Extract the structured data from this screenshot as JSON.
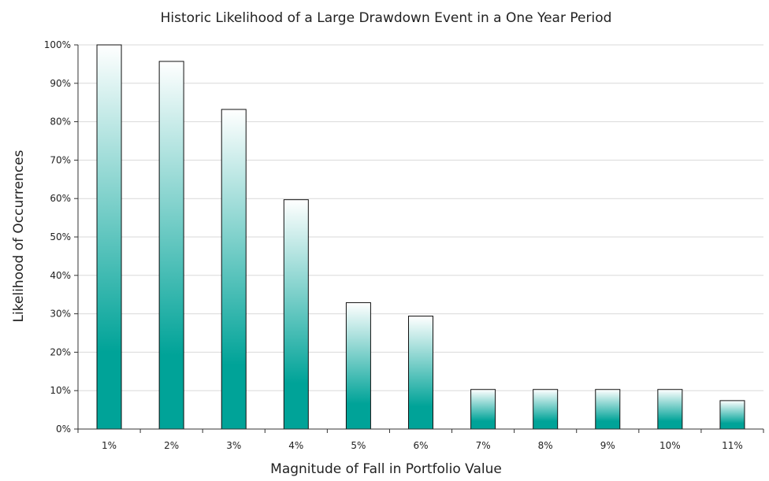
{
  "chart_data": {
    "type": "bar",
    "title": "Historic Likelihood of a Large Drawdown Event in a One Year Period",
    "xlabel": "Magnitude of Fall in Portfolio Value",
    "ylabel": "Likelihood of Occurrences",
    "categories": [
      "1%",
      "2%",
      "3%",
      "4%",
      "5%",
      "6%",
      "7%",
      "8%",
      "9%",
      "10%",
      "11%"
    ],
    "values": [
      100,
      95.7,
      83.2,
      59.7,
      32.9,
      29.4,
      10.3,
      10.3,
      10.3,
      10.3,
      7.4
    ],
    "ylim": [
      0,
      100
    ],
    "y_ticks": [
      0,
      10,
      20,
      30,
      40,
      50,
      60,
      70,
      80,
      90,
      100
    ],
    "y_tick_labels": [
      "0%",
      "10%",
      "20%",
      "30%",
      "40%",
      "50%",
      "60%",
      "70%",
      "80%",
      "90%",
      "100%"
    ],
    "grid": true,
    "legend": "none",
    "colors": {
      "bar_top": "#ffffff",
      "bar_bottom": "#00a398",
      "bar_outline": "#111111",
      "grid": "#d9d9d9",
      "axis": "#333333"
    }
  }
}
